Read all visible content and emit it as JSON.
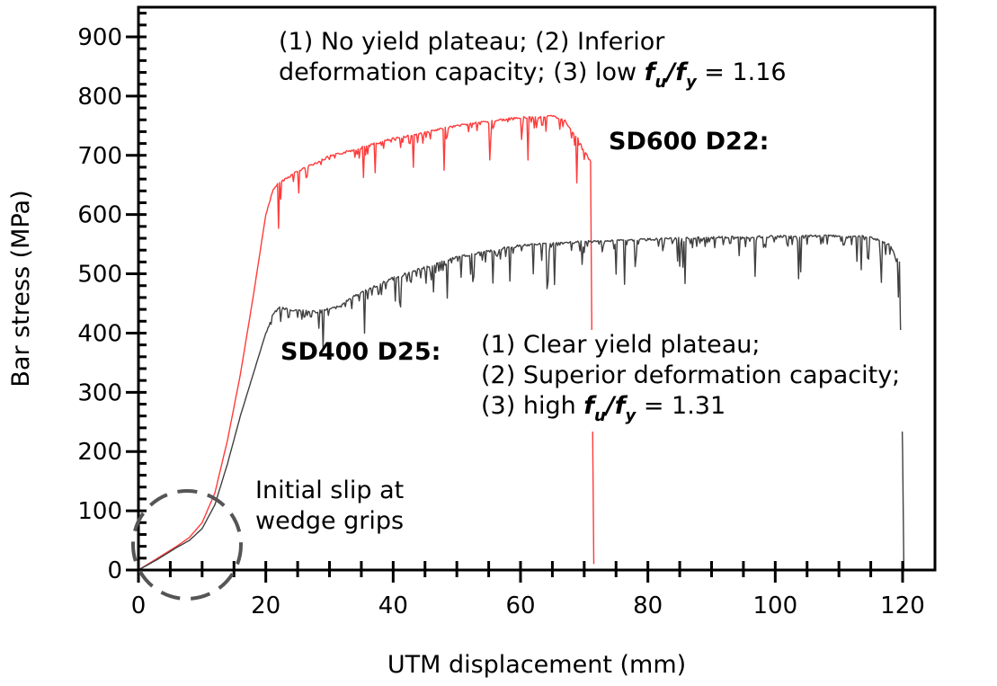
{
  "chart_data": {
    "type": "line",
    "title": "",
    "xlabel": "UTM displacement (mm)",
    "ylabel": "Bar stress (MPa)",
    "xlim": [
      0,
      125
    ],
    "ylim": [
      0,
      950
    ],
    "xticks": [
      0,
      20,
      40,
      60,
      80,
      100,
      120
    ],
    "yticks": [
      0,
      100,
      200,
      300,
      400,
      500,
      600,
      700,
      800,
      900
    ],
    "grid": false,
    "colors": {
      "SD600 D22": "#ff3b3b",
      "SD400 D25": "#404040",
      "axis": "#000000",
      "slip_circle": "#555555"
    },
    "series": [
      {
        "name": "SD600 D22",
        "x": [
          0,
          3,
          6,
          8,
          10,
          12,
          14,
          16,
          18,
          20,
          21,
          22,
          25,
          30,
          35,
          40,
          45,
          50,
          55,
          60,
          65,
          67,
          69,
          70.5,
          71,
          71.2,
          71.5
        ],
        "y": [
          0,
          20,
          40,
          55,
          80,
          130,
          220,
          330,
          460,
          600,
          640,
          655,
          675,
          700,
          715,
          730,
          740,
          752,
          760,
          765,
          768,
          760,
          730,
          700,
          690,
          400,
          10
        ]
      },
      {
        "name": "SD400 D25",
        "x": [
          0,
          3,
          6,
          8,
          10,
          12,
          14,
          16,
          18,
          20,
          21,
          22,
          25,
          28,
          31,
          34,
          40,
          50,
          60,
          70,
          80,
          90,
          100,
          110,
          115,
          118,
          119.5,
          120,
          120.2
        ],
        "y": [
          0,
          18,
          38,
          50,
          70,
          110,
          180,
          260,
          330,
          400,
          430,
          445,
          440,
          438,
          445,
          465,
          495,
          530,
          550,
          556,
          560,
          563,
          565,
          566,
          564,
          550,
          520,
          200,
          0
        ]
      }
    ],
    "annotations": {
      "sd600_label": "SD600 D22:",
      "sd600_line1": "(1) No yield plateau; (2) Inferior",
      "sd600_line2_prefix": "deformation capacity; (3) low ",
      "sd600_ratio_value": "= 1.16",
      "sd400_label": "SD400 D25:",
      "sd400_line1": "(1) Clear yield plateau;",
      "sd400_line2": "(2) Superior deformation capacity;",
      "sd400_line3_prefix": "(3) high ",
      "sd400_ratio_value": "= 1.31",
      "ratio_f": "f",
      "ratio_u": "u",
      "ratio_slash": "/",
      "ratio_y": "y",
      "slip_line1": "Initial slip at",
      "slip_line2": "wedge grips"
    }
  }
}
